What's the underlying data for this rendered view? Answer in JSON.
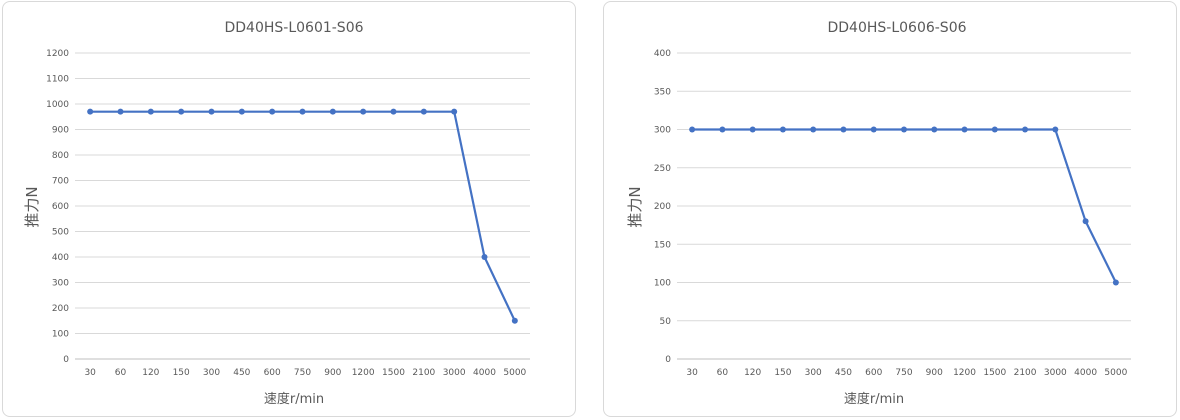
{
  "chart_data": [
    {
      "type": "line",
      "title": "DD40HS-L0601-S06",
      "xlabel": "速度r/min",
      "ylabel": "推力N",
      "categories": [
        "30",
        "60",
        "120",
        "150",
        "300",
        "450",
        "600",
        "750",
        "900",
        "1200",
        "1500",
        "2100",
        "3000",
        "4000",
        "5000"
      ],
      "series": [
        {
          "values": [
            970,
            970,
            970,
            970,
            970,
            970,
            970,
            970,
            970,
            970,
            970,
            970,
            970,
            400,
            150
          ]
        }
      ],
      "ylim": [
        0,
        1200
      ],
      "yticks": [
        0,
        100,
        200,
        300,
        400,
        500,
        600,
        700,
        800,
        900,
        1000,
        1100,
        1200
      ],
      "grid": true,
      "legend": "none",
      "colors": {
        "series": "#4472c4",
        "grid": "#d9d9d9",
        "text": "#595959"
      }
    },
    {
      "type": "line",
      "title": "DD40HS-L0606-S06",
      "xlabel": "速度r/min",
      "ylabel": "推力N",
      "categories": [
        "30",
        "60",
        "120",
        "150",
        "300",
        "450",
        "600",
        "750",
        "900",
        "1200",
        "1500",
        "2100",
        "3000",
        "4000",
        "5000"
      ],
      "series": [
        {
          "values": [
            300,
            300,
            300,
            300,
            300,
            300,
            300,
            300,
            300,
            300,
            300,
            300,
            300,
            180,
            100
          ]
        }
      ],
      "ylim": [
        0,
        400
      ],
      "yticks": [
        0,
        50,
        100,
        150,
        200,
        250,
        300,
        350,
        400
      ],
      "grid": true,
      "legend": "none",
      "colors": {
        "series": "#4472c4",
        "grid": "#d9d9d9",
        "text": "#595959"
      }
    }
  ]
}
